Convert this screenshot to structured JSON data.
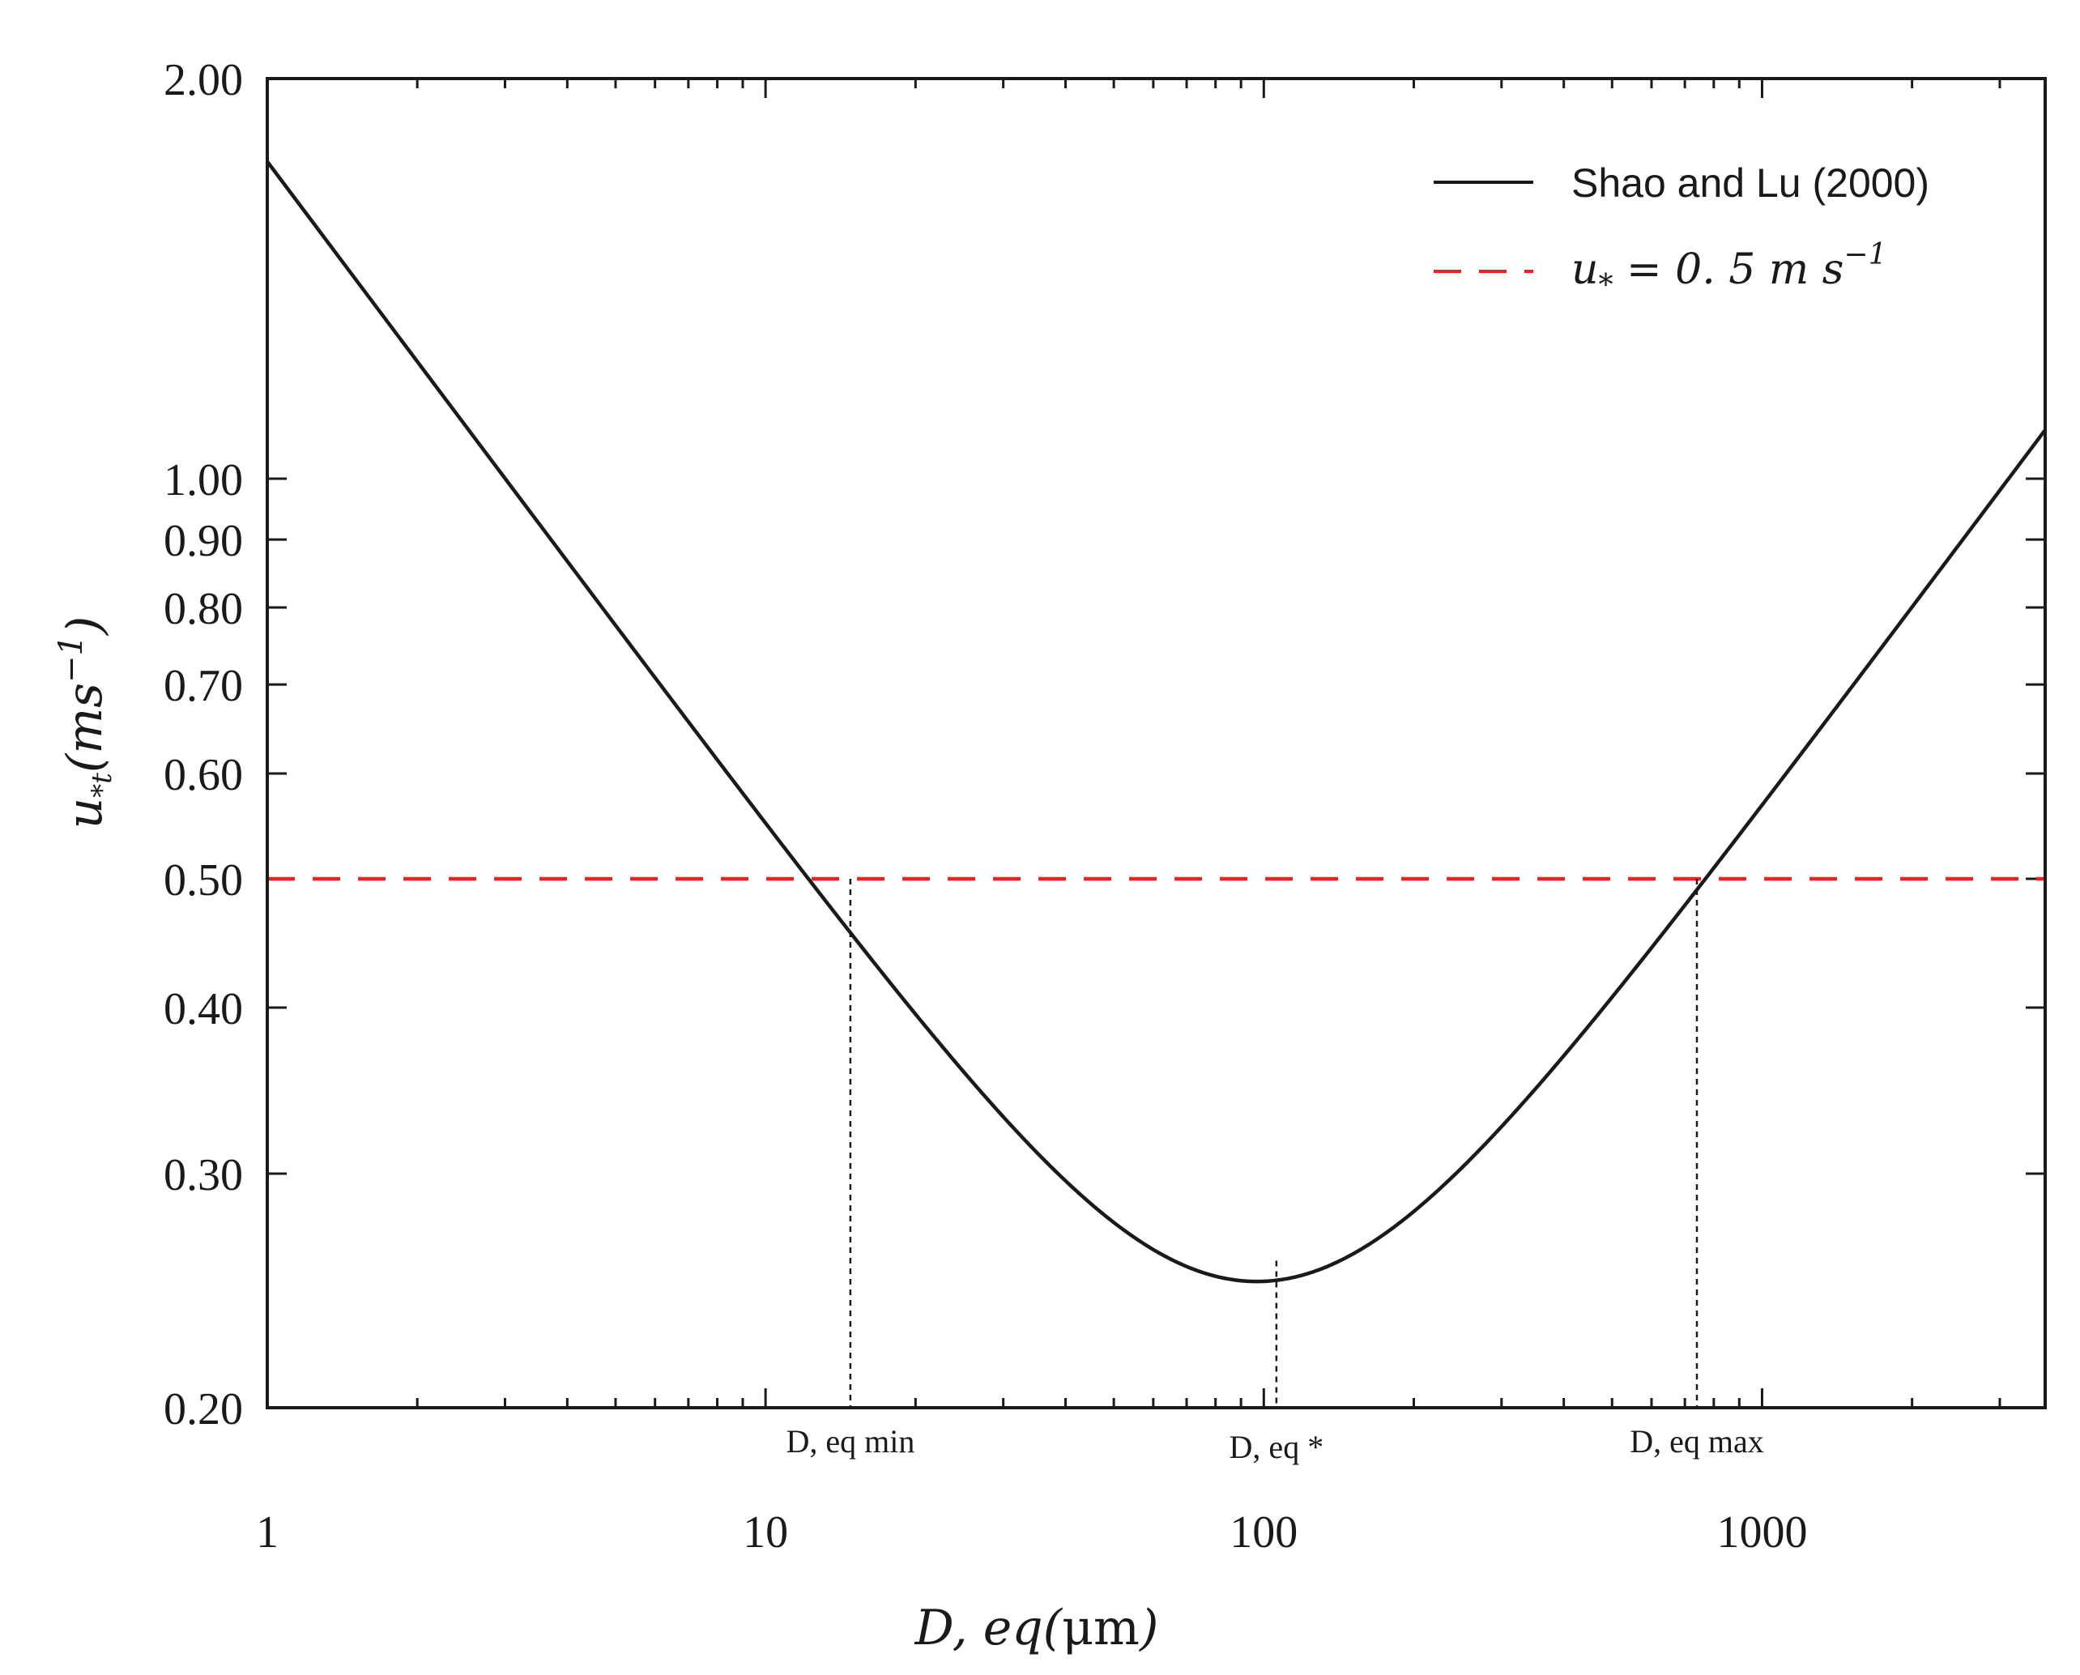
{
  "chart_data": {
    "type": "line",
    "xscale": "log",
    "yscale": "log",
    "xlim": [
      1,
      3700
    ],
    "ylim": [
      0.2,
      2.0
    ],
    "xlabel": "D, eq(μm)",
    "ylabel": "u*t(ms⁻¹)",
    "x_ticks": [
      {
        "value": 1,
        "label": "1"
      },
      {
        "value": 10,
        "label": "10"
      },
      {
        "value": 100,
        "label": "100"
      },
      {
        "value": 1000,
        "label": "1000"
      }
    ],
    "y_ticks": [
      {
        "value": 0.2,
        "label": "0.20"
      },
      {
        "value": 0.3,
        "label": "0.30"
      },
      {
        "value": 0.4,
        "label": "0.40"
      },
      {
        "value": 0.5,
        "label": "0.50"
      },
      {
        "value": 0.6,
        "label": "0.60"
      },
      {
        "value": 0.7,
        "label": "0.70"
      },
      {
        "value": 0.8,
        "label": "0.80"
      },
      {
        "value": 0.9,
        "label": "0.90"
      },
      {
        "value": 1.0,
        "label": "1.00"
      },
      {
        "value": 2.0,
        "label": "2.00"
      }
    ],
    "series": [
      {
        "name": "Shao and Lu (2000)",
        "style": "solid",
        "color": "#1a1a1a",
        "formula": "u = sqrt(A_N * (sigma * g * d + gamma / (rho_a * d)))",
        "params": {
          "A_N": 0.0123,
          "sigma": 2650,
          "rho_a": 1.23,
          "g": 9.81,
          "gamma": 0.0003
        },
        "x_range": [
          1,
          3700
        ]
      },
      {
        "name": "u* = 0.5 m s⁻¹",
        "style": "dashed",
        "color": "#ee2222",
        "y": 0.5
      }
    ],
    "legend": {
      "position": "top-right",
      "entries": [
        {
          "label": "Shao and Lu (2000)",
          "line_style": "solid",
          "color": "#1a1a1a"
        },
        {
          "label_base": "u",
          "label_sub": "*",
          "label_mid": " = 0. 5 m s",
          "label_sup": "−1",
          "line_style": "dashed",
          "color": "#ee2222"
        }
      ]
    },
    "annotations": [
      {
        "label": "D, eq min",
        "x": 14.8,
        "y": 0.5
      },
      {
        "label": "D, eq *",
        "x": 106,
        "y": 0.258
      },
      {
        "label": "D, eq max",
        "x": 740,
        "y": 0.5
      }
    ],
    "axis_titles": {
      "x_base": "D, eq(",
      "x_mu": "μm",
      "x_end": ")",
      "y_base": "u",
      "y_sub": "*t",
      "y_paren": "(ms",
      "y_sup": "−1",
      "y_end": ")"
    },
    "grid": false
  }
}
